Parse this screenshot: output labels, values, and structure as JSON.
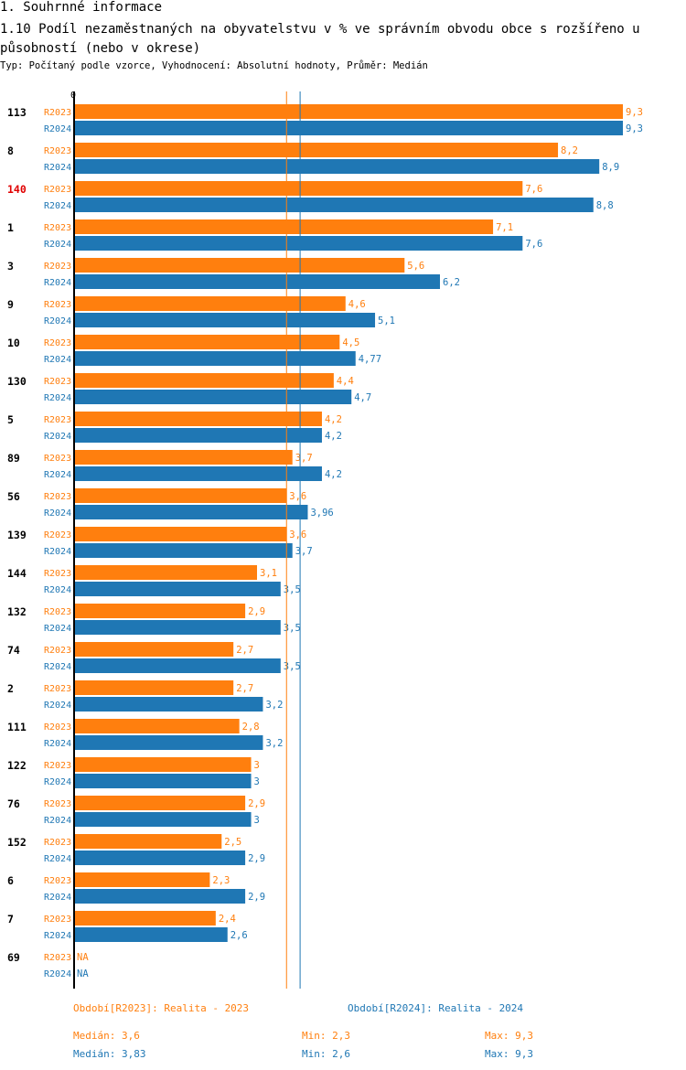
{
  "header": {
    "section": "1. Souhrnné informace",
    "title": "1.10 Podíl nezaměstnaných na obyvatelstvu v % ve správním obvodu obce s rozšířeno u působností (nebo v okrese)",
    "meta": "Typ: Počítaný podle vzorce, Vyhodnocení: Absolutní hodnoty, Průměr: Medián"
  },
  "colors": {
    "r2023": "#ff7f0e",
    "r2024": "#1f77b4",
    "highlight": "#e00000"
  },
  "chart_data": {
    "type": "bar",
    "orientation": "horizontal",
    "axis_zero_label": "0",
    "xlim": [
      0,
      9.3
    ],
    "series_names": [
      "R2023",
      "R2024"
    ],
    "categories": [
      {
        "id": "113",
        "highlight": false,
        "r2023": 9.3,
        "r2024": 9.3,
        "l2023": "9,3",
        "l2024": "9,3"
      },
      {
        "id": "8",
        "highlight": false,
        "r2023": 8.2,
        "r2024": 8.9,
        "l2023": "8,2",
        "l2024": "8,9"
      },
      {
        "id": "140",
        "highlight": true,
        "r2023": 7.6,
        "r2024": 8.8,
        "l2023": "7,6",
        "l2024": "8,8"
      },
      {
        "id": "1",
        "highlight": false,
        "r2023": 7.1,
        "r2024": 7.6,
        "l2023": "7,1",
        "l2024": "7,6"
      },
      {
        "id": "3",
        "highlight": false,
        "r2023": 5.6,
        "r2024": 6.2,
        "l2023": "5,6",
        "l2024": "6,2"
      },
      {
        "id": "9",
        "highlight": false,
        "r2023": 4.6,
        "r2024": 5.1,
        "l2023": "4,6",
        "l2024": "5,1"
      },
      {
        "id": "10",
        "highlight": false,
        "r2023": 4.5,
        "r2024": 4.77,
        "l2023": "4,5",
        "l2024": "4,77"
      },
      {
        "id": "130",
        "highlight": false,
        "r2023": 4.4,
        "r2024": 4.7,
        "l2023": "4,4",
        "l2024": "4,7"
      },
      {
        "id": "5",
        "highlight": false,
        "r2023": 4.2,
        "r2024": 4.2,
        "l2023": "4,2",
        "l2024": "4,2"
      },
      {
        "id": "89",
        "highlight": false,
        "r2023": 3.7,
        "r2024": 4.2,
        "l2023": "3,7",
        "l2024": "4,2"
      },
      {
        "id": "56",
        "highlight": false,
        "r2023": 3.6,
        "r2024": 3.96,
        "l2023": "3,6",
        "l2024": "3,96"
      },
      {
        "id": "139",
        "highlight": false,
        "r2023": 3.6,
        "r2024": 3.7,
        "l2023": "3,6",
        "l2024": "3,7"
      },
      {
        "id": "144",
        "highlight": false,
        "r2023": 3.1,
        "r2024": 3.5,
        "l2023": "3,1",
        "l2024": "3,5"
      },
      {
        "id": "132",
        "highlight": false,
        "r2023": 2.9,
        "r2024": 3.5,
        "l2023": "2,9",
        "l2024": "3,5"
      },
      {
        "id": "74",
        "highlight": false,
        "r2023": 2.7,
        "r2024": 3.5,
        "l2023": "2,7",
        "l2024": "3,5"
      },
      {
        "id": "2",
        "highlight": false,
        "r2023": 2.7,
        "r2024": 3.2,
        "l2023": "2,7",
        "l2024": "3,2"
      },
      {
        "id": "111",
        "highlight": false,
        "r2023": 2.8,
        "r2024": 3.2,
        "l2023": "2,8",
        "l2024": "3,2"
      },
      {
        "id": "122",
        "highlight": false,
        "r2023": 3,
        "r2024": 3,
        "l2023": "3",
        "l2024": "3"
      },
      {
        "id": "76",
        "highlight": false,
        "r2023": 2.9,
        "r2024": 3,
        "l2023": "2,9",
        "l2024": "3"
      },
      {
        "id": "152",
        "highlight": false,
        "r2023": 2.5,
        "r2024": 2.9,
        "l2023": "2,5",
        "l2024": "2,9"
      },
      {
        "id": "6",
        "highlight": false,
        "r2023": 2.3,
        "r2024": 2.9,
        "l2023": "2,3",
        "l2024": "2,9"
      },
      {
        "id": "7",
        "highlight": false,
        "r2023": 2.4,
        "r2024": 2.6,
        "l2023": "2,4",
        "l2024": "2,6"
      },
      {
        "id": "69",
        "highlight": false,
        "r2023": null,
        "r2024": null,
        "l2023": "NA",
        "l2024": "NA"
      }
    ],
    "median_lines": {
      "r2023": 3.6,
      "r2024": 3.83
    }
  },
  "footer": {
    "legend_2023": "Období[R2023]: Realita - 2023",
    "legend_2024": "Období[R2024]: Realita - 2024",
    "stats_2023": {
      "median": "Medián: 3,6",
      "min": "Min: 2,3",
      "max": "Max: 9,3"
    },
    "stats_2024": {
      "median": "Medián: 3,83",
      "min": "Min: 2,6",
      "max": "Max: 9,3"
    }
  }
}
